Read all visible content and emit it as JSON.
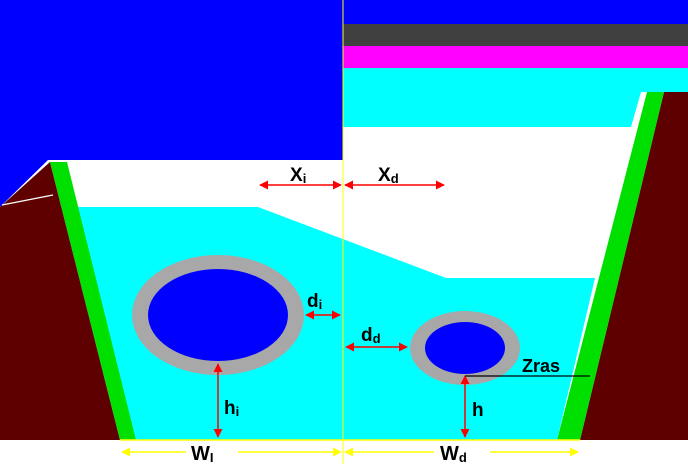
{
  "colors": {
    "background": "#ffffff",
    "ground": "#5e0000",
    "side_slope": "#00e000",
    "fill_blue": "#0000ff",
    "fill_cyan": "#00ffff",
    "pavement_dark": "#404040",
    "pavement_magenta": "#ff00ff",
    "pipe_wall": "#a8a8a8",
    "pipe_inner": "#0000ff",
    "dimension_arrow": "#ff0000",
    "width_arrow": "#ffff00",
    "centerline": "#ffff00"
  },
  "labels": {
    "xi_main": "X",
    "xi_sub": "i",
    "xd_main": "X",
    "xd_sub": "d",
    "di_main": "d",
    "di_sub": "i",
    "dd_main": "d",
    "dd_sub": "d",
    "hi_main": "h",
    "hi_sub": "i",
    "h_main": "h",
    "zras": "Zras",
    "wi_main": "W",
    "wi_sub": "I",
    "wd_main": "W",
    "wd_sub": "d"
  }
}
